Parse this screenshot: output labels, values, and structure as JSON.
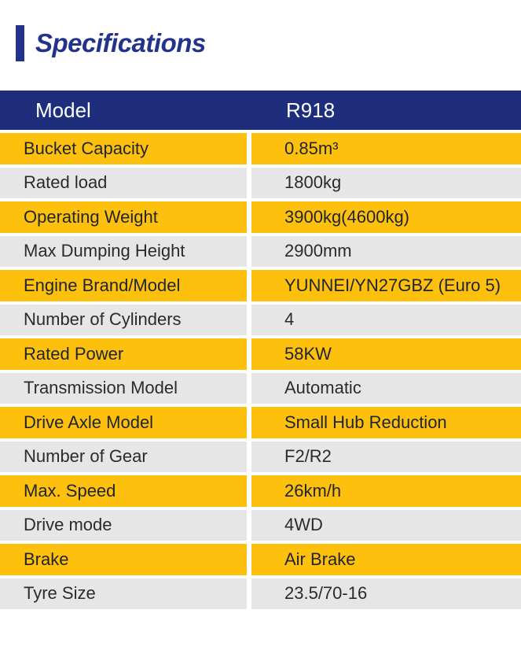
{
  "title": {
    "text": "Specifications"
  },
  "colors": {
    "page_bg": "#FFFFFF",
    "navy_title": "#23338C",
    "navy_header": "#1E2E7D",
    "header_text": "#FFFFFF",
    "yellow_row": "#FCC00D",
    "yellow_row_text": "#1F2430",
    "gray_row": "#E6E6E6",
    "gray_row_text": "#2B2B2B"
  },
  "table": {
    "header": {
      "model_label": "Model",
      "model_value": "R918"
    },
    "rows": [
      {
        "label": "Bucket Capacity",
        "value": "0.85m³"
      },
      {
        "label": "Rated load",
        "value": "1800kg"
      },
      {
        "label": "Operating Weight",
        "value": "3900kg(4600kg)"
      },
      {
        "label": "Max Dumping Height",
        "value": "2900mm"
      },
      {
        "label": "Engine Brand/Model",
        "value": "YUNNEI/YN27GBZ (Euro 5)"
      },
      {
        "label": "Number of Cylinders",
        "value": "4"
      },
      {
        "label": "Rated Power",
        "value": "58KW"
      },
      {
        "label": "Transmission Model",
        "value": "Automatic"
      },
      {
        "label": "Drive Axle Model",
        "value": "Small Hub Reduction"
      },
      {
        "label": "Number of Gear",
        "value": "F2/R2"
      },
      {
        "label": "Max. Speed",
        "value": "26km/h"
      },
      {
        "label": "Drive mode",
        "value": "4WD"
      },
      {
        "label": "Brake",
        "value": "Air Brake"
      },
      {
        "label": "Tyre Size",
        "value": "23.5/70-16"
      }
    ]
  }
}
